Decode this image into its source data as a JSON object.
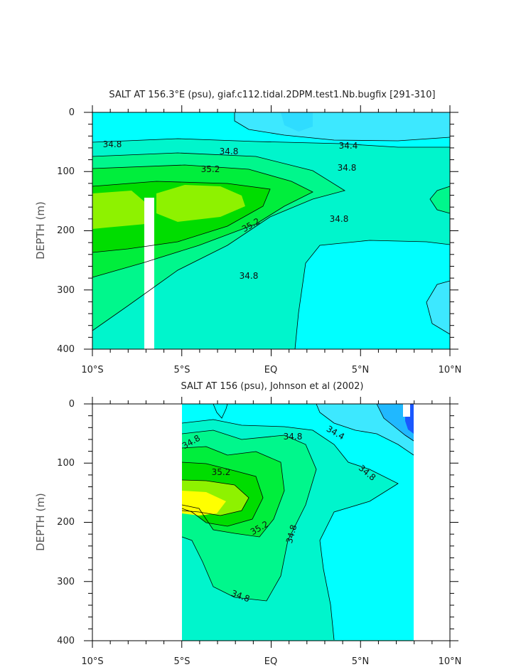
{
  "chart_data": [
    {
      "type": "contour",
      "title": "SALT AT 156.3°E (psu), giaf.c112.tidal.2DPM.test1.Nb.bugfix [291-310]",
      "ylabel": "DEPTH (m)",
      "xlabel": "",
      "x_ticks": [
        "10°S",
        "5°S",
        "EQ",
        "5°N",
        "10°N"
      ],
      "y_ticks": [
        "0",
        "100",
        "200",
        "300",
        "400"
      ],
      "xlim": [
        -10,
        10
      ],
      "ylim": [
        400,
        0
      ],
      "contour_labels": [
        "34.8",
        "34.8",
        "34.4",
        "35.2",
        "34.8",
        "35.2",
        "34.8",
        "34.8"
      ],
      "colors": {
        "low": "#3de8ff",
        "mid": "#00ffff",
        "c1": "#00f5cc",
        "c2": "#00f78c",
        "c3": "#00ee3c",
        "c4": "#8ef200"
      }
    },
    {
      "type": "contour",
      "title": "SALT AT 156 (psu), Johnson et al (2002)",
      "ylabel": "DEPTH (m)",
      "xlabel": "",
      "x_ticks": [
        "10°S",
        "5°S",
        "EQ",
        "5°N",
        "10°N"
      ],
      "y_ticks": [
        "0",
        "100",
        "200",
        "300",
        "400"
      ],
      "xlim": [
        -10,
        10
      ],
      "ylim": [
        400,
        0
      ],
      "data_xrange": [
        -5,
        8
      ],
      "contour_labels": [
        "34.8",
        "34.8",
        "34.4",
        "35.2",
        "34.8",
        "35.2",
        "34.8",
        "34.8"
      ],
      "colors": {
        "low": "#3de8ff",
        "mid": "#00ffff",
        "c1": "#00f5cc",
        "c2": "#00f78c",
        "c3": "#00ee3c",
        "c4": "#8ef200",
        "max": "#ffff00",
        "deep": "#1a58ff"
      }
    }
  ]
}
